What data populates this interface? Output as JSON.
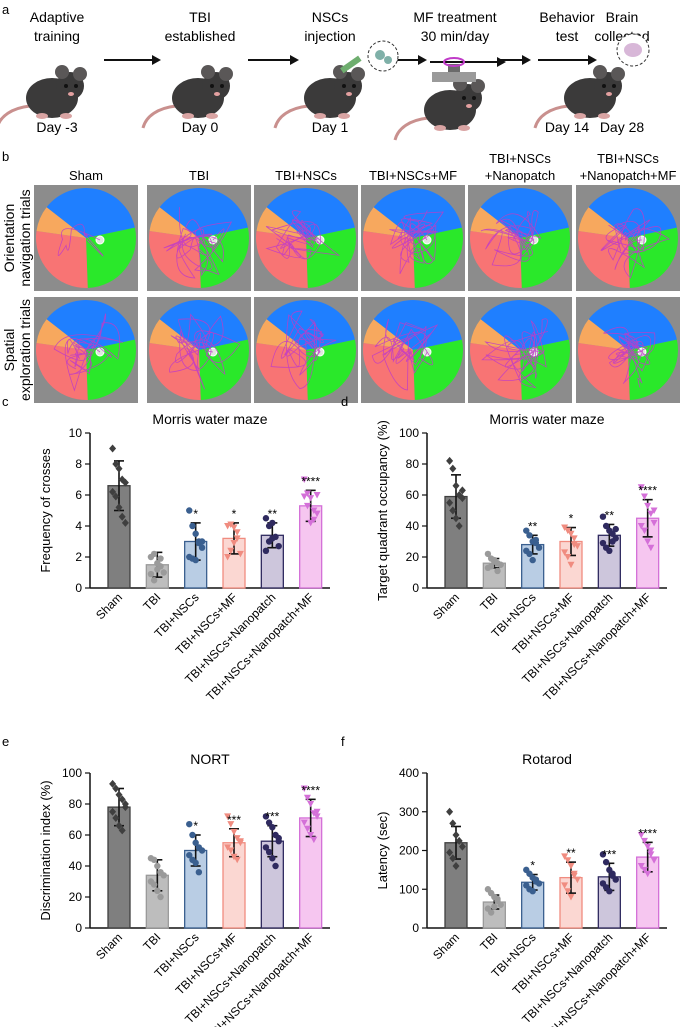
{
  "panel_letters": {
    "a": "a",
    "b": "b",
    "c": "c",
    "d": "d",
    "e": "e",
    "f": "f"
  },
  "timeline": [
    {
      "lines": [
        "Adaptive",
        "training"
      ],
      "day": "Day -3"
    },
    {
      "lines": [
        "TBI",
        "established"
      ],
      "day": "Day 0"
    },
    {
      "lines": [
        "NSCs",
        "injection"
      ],
      "day": "Day 1"
    },
    {
      "lines": [
        "MF treatment",
        "30 min/day"
      ],
      "day": ""
    },
    {
      "lines": [
        "Behavior",
        "test"
      ],
      "day": "Day 14"
    },
    {
      "lines": [
        "Brain",
        "collected"
      ],
      "day": "Day 28"
    }
  ],
  "colors": {
    "mouse": "#3b3a3a",
    "mouse_light": "#5a5757",
    "tail": "#c9908e",
    "arrow": "#111111",
    "pool_bg": "#8c8c8c",
    "quad_blue": "#1f7fff",
    "quad_green": "#2ae82a",
    "quad_red": "#f87474",
    "quad_orange": "#f7a85e",
    "track": "#c03bc8"
  },
  "maze": {
    "columns": [
      [
        "Sham"
      ],
      [
        "TBI"
      ],
      [
        "TBI+NSCs"
      ],
      [
        "TBI+NSCs+MF"
      ],
      [
        "TBI+NSCs",
        "+Nanopatch"
      ],
      [
        "TBI+NSCs",
        "+Nanopatch+MF"
      ]
    ],
    "rows": [
      [
        "Orientation",
        "navigation trials"
      ],
      [
        "Spatial",
        "exploration trials"
      ]
    ]
  },
  "groups": [
    "Sham",
    "TBI",
    "TBI+NSCs",
    "TBI+NSCs+MF",
    "TBI+NSCs+Nanopatch",
    "TBI+NSCs+Nanopatch+MF"
  ],
  "group_colors": {
    "fill": [
      "#7f7f7f",
      "#bdbdbd",
      "#b9cde4",
      "#fbd7d2",
      "#cdc6dc",
      "#f6c6f0"
    ],
    "edge": [
      "#3f3f3f",
      "#9a9a9a",
      "#3a5f8f",
      "#f08c80",
      "#2f2a5f",
      "#d470d8"
    ],
    "marker": [
      "diamond",
      "circle",
      "circle",
      "triangle-down",
      "circle",
      "triangle-down"
    ]
  },
  "chart_data": [
    {
      "type": "bar",
      "panel": "c",
      "title": "Morris water maze",
      "ylabel": "Frequency of crosses",
      "xlabel": "",
      "categories": [
        "Sham",
        "TBI",
        "TBI+NSCs",
        "TBI+NSCs+MF",
        "TBI+NSCs+Nanopatch",
        "TBI+NSCs+Nanopatch+MF"
      ],
      "values": [
        6.6,
        1.5,
        3.0,
        3.2,
        3.4,
        5.3
      ],
      "error": [
        1.6,
        0.8,
        1.2,
        1.0,
        0.8,
        1.0
      ],
      "significance": [
        "",
        "",
        "*",
        "*",
        "**",
        "****"
      ],
      "ylim": [
        0,
        10
      ],
      "yticks": [
        0,
        2,
        4,
        6,
        8,
        10
      ],
      "points": [
        [
          9.0,
          8.0,
          7.7,
          7.0,
          6.8,
          6.2,
          5.9,
          5.2,
          4.6,
          4.2
        ],
        [
          2.0,
          2.2,
          1.6,
          1.4,
          1.0,
          0.9,
          0.5,
          1.2,
          1.9
        ],
        [
          5.0,
          4.0,
          3.5,
          3.0,
          2.6,
          2.0,
          1.9,
          1.8,
          2.9,
          3.0
        ],
        [
          4.0,
          4.1,
          3.9,
          3.2,
          2.2,
          2.0,
          2.4,
          2.9,
          3.6
        ],
        [
          4.5,
          4.0,
          4.2,
          3.3,
          2.7,
          2.4,
          3.0,
          3.2
        ],
        [
          7.0,
          6.1,
          5.8,
          5.0,
          4.8,
          5.9,
          5.3,
          4.2,
          4.4,
          6.0
        ]
      ]
    },
    {
      "type": "bar",
      "panel": "d",
      "title": "Morris water maze",
      "ylabel": "Target quadrant occupancy (%)",
      "xlabel": "",
      "categories": [
        "Sham",
        "TBI",
        "TBI+NSCs",
        "TBI+NSCs+MF",
        "TBI+NSCs+Nanopatch",
        "TBI+NSCs+Nanopatch+MF"
      ],
      "values": [
        59,
        16,
        28,
        30,
        34,
        45
      ],
      "error": [
        14,
        3,
        6,
        9,
        7,
        12
      ],
      "significance": [
        "",
        "",
        "**",
        "*",
        "**",
        "****"
      ],
      "ylim": [
        0,
        100
      ],
      "yticks": [
        0,
        20,
        40,
        60,
        80,
        100
      ],
      "points": [
        [
          82,
          77,
          66,
          60,
          58,
          55,
          50,
          45,
          40,
          63
        ],
        [
          22,
          19,
          17,
          16,
          15,
          13,
          14,
          18,
          11
        ],
        [
          37,
          34,
          30,
          29,
          26,
          24,
          22,
          18,
          31
        ],
        [
          39,
          37,
          35,
          32,
          27,
          23,
          20,
          15,
          28
        ],
        [
          46,
          40,
          37,
          35,
          32,
          29,
          26,
          24,
          30,
          38
        ],
        [
          65,
          59,
          53,
          48,
          42,
          40,
          37,
          30,
          26,
          50
        ]
      ]
    },
    {
      "type": "bar",
      "panel": "e",
      "title": "NORT",
      "ylabel": "Discrimination index (%)",
      "xlabel": "",
      "categories": [
        "Sham",
        "TBI",
        "TBI+NSCs",
        "TBI+NSCs+MF",
        "TBI+NSCs+Nanopatch",
        "TBI+NSCs+Nanopatch+MF"
      ],
      "values": [
        78,
        34,
        50,
        55,
        56,
        71
      ],
      "error": [
        12,
        10,
        10,
        9,
        10,
        12
      ],
      "significance": [
        "",
        "",
        "*",
        "***",
        "***",
        "****"
      ],
      "ylim": [
        0,
        100
      ],
      "yticks": [
        0,
        20,
        40,
        60,
        80,
        100
      ],
      "points": [
        [
          93,
          90,
          86,
          83,
          78,
          75,
          71,
          66,
          63,
          80
        ],
        [
          45,
          44,
          40,
          36,
          34,
          30,
          28,
          24,
          20
        ],
        [
          67,
          60,
          55,
          52,
          50,
          47,
          44,
          42,
          36
        ],
        [
          72,
          67,
          62,
          58,
          55,
          52,
          50,
          46,
          44,
          56
        ],
        [
          72,
          68,
          65,
          60,
          56,
          52,
          49,
          45,
          40,
          58
        ],
        [
          90,
          84,
          80,
          74,
          72,
          68,
          64,
          60,
          57,
          75
        ]
      ]
    },
    {
      "type": "bar",
      "panel": "f",
      "title": "Rotarod",
      "ylabel": "Latency (sec)",
      "xlabel": "",
      "categories": [
        "Sham",
        "TBI",
        "TBI+NSCs",
        "TBI+NSCs+MF",
        "TBI+NSCs+Nanopatch",
        "TBI+NSCs+Nanopatch+MF"
      ],
      "values": [
        220,
        67,
        118,
        130,
        132,
        183
      ],
      "error": [
        42,
        18,
        20,
        40,
        35,
        38
      ],
      "significance": [
        "",
        "",
        "*",
        "**",
        "***",
        "****"
      ],
      "ylim": [
        0,
        400
      ],
      "yticks": [
        0,
        100,
        200,
        300,
        400
      ],
      "points": [
        [
          300,
          270,
          240,
          225,
          210,
          195,
          180,
          160
        ],
        [
          100,
          90,
          80,
          70,
          60,
          50,
          40,
          55,
          75
        ],
        [
          150,
          140,
          130,
          120,
          115,
          110,
          100,
          95,
          125
        ],
        [
          185,
          175,
          160,
          140,
          125,
          110,
          95,
          80,
          135
        ],
        [
          190,
          170,
          150,
          135,
          125,
          115,
          105,
          95,
          140
        ],
        [
          240,
          225,
          210,
          190,
          175,
          160,
          150,
          140,
          200
        ]
      ]
    }
  ]
}
